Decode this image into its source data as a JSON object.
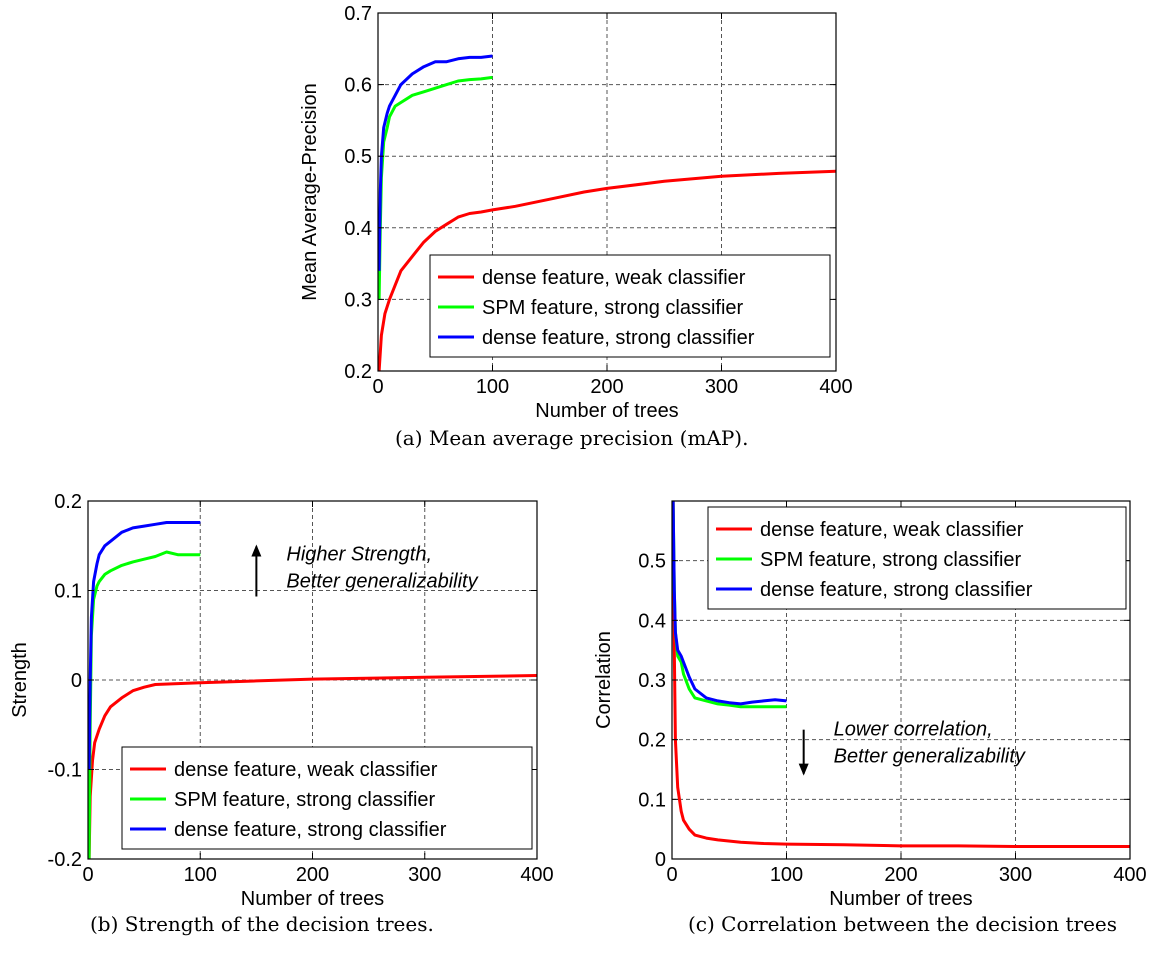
{
  "captions": {
    "a": "(a) Mean average precision (mAP).",
    "b": "(b) Strength of the decision trees.",
    "c": "(c) Correlation between the decision trees"
  },
  "colors": {
    "red": "#ff0000",
    "green": "#00ff00",
    "blue": "#0000ff",
    "grid": "#555555"
  },
  "chart_data": [
    {
      "id": "a",
      "type": "line",
      "xlabel": "Number of trees",
      "ylabel": "Mean Average-Precision",
      "xlim": [
        0,
        400
      ],
      "ylim": [
        0.2,
        0.7
      ],
      "xticks": [
        0,
        100,
        200,
        300,
        400
      ],
      "yticks": [
        0.2,
        0.3,
        0.4,
        0.5,
        0.6,
        0.7
      ],
      "ytick_labels": [
        "0.2",
        "0.3",
        "0.4",
        "0.5",
        "0.6",
        "0.7"
      ],
      "grid": true,
      "legend_position": "bottom-right",
      "series": [
        {
          "name": "dense feature, weak classifier",
          "color": "#ff0000",
          "x": [
            1,
            3,
            6,
            10,
            15,
            20,
            30,
            40,
            50,
            60,
            70,
            80,
            90,
            100,
            120,
            150,
            180,
            200,
            250,
            300,
            350,
            400
          ],
          "y": [
            0.2,
            0.25,
            0.28,
            0.3,
            0.32,
            0.34,
            0.36,
            0.38,
            0.395,
            0.405,
            0.415,
            0.42,
            0.422,
            0.425,
            0.43,
            0.44,
            0.45,
            0.455,
            0.465,
            0.472,
            0.476,
            0.479
          ]
        },
        {
          "name": "SPM feature, strong classifier",
          "color": "#00ff00",
          "x": [
            1,
            2,
            3,
            5,
            8,
            10,
            15,
            20,
            30,
            40,
            50,
            60,
            70,
            80,
            90,
            100
          ],
          "y": [
            0.3,
            0.4,
            0.47,
            0.52,
            0.54,
            0.555,
            0.57,
            0.575,
            0.585,
            0.59,
            0.595,
            0.6,
            0.605,
            0.607,
            0.608,
            0.61
          ]
        },
        {
          "name": "dense feature, strong classifier",
          "color": "#0000ff",
          "x": [
            1,
            2,
            3,
            5,
            8,
            10,
            15,
            20,
            30,
            40,
            50,
            60,
            70,
            80,
            90,
            100
          ],
          "y": [
            0.34,
            0.45,
            0.5,
            0.54,
            0.56,
            0.57,
            0.585,
            0.6,
            0.615,
            0.625,
            0.632,
            0.632,
            0.636,
            0.638,
            0.638,
            0.64
          ]
        }
      ],
      "annotations": []
    },
    {
      "id": "b",
      "type": "line",
      "xlabel": "Number of trees",
      "ylabel": "Strength",
      "xlim": [
        0,
        400
      ],
      "ylim": [
        -0.2,
        0.2
      ],
      "xticks": [
        0,
        100,
        200,
        300,
        400
      ],
      "yticks": [
        -0.2,
        -0.1,
        0,
        0.1,
        0.2
      ],
      "ytick_labels": [
        "-0.2",
        "-0.1",
        "0",
        "0.1",
        "0.2"
      ],
      "grid": true,
      "legend_position": "bottom-right",
      "series": [
        {
          "name": "dense feature, weak classifier",
          "color": "#ff0000",
          "x": [
            1,
            2,
            4,
            6,
            10,
            15,
            20,
            30,
            40,
            50,
            60,
            80,
            100,
            150,
            200,
            300,
            400
          ],
          "y": [
            -0.2,
            -0.13,
            -0.09,
            -0.07,
            -0.055,
            -0.04,
            -0.03,
            -0.02,
            -0.012,
            -0.008,
            -0.005,
            -0.004,
            -0.003,
            -0.001,
            0.001,
            0.003,
            0.005
          ]
        },
        {
          "name": "SPM feature, strong classifier",
          "color": "#00ff00",
          "x": [
            1,
            2,
            3,
            5,
            8,
            10,
            15,
            20,
            30,
            40,
            50,
            60,
            70,
            80,
            90,
            100
          ],
          "y": [
            -0.2,
            -0.05,
            0.05,
            0.09,
            0.105,
            0.11,
            0.118,
            0.122,
            0.128,
            0.132,
            0.135,
            0.138,
            0.143,
            0.14,
            0.14,
            0.14
          ]
        },
        {
          "name": "dense feature, strong classifier",
          "color": "#0000ff",
          "x": [
            1,
            2,
            3,
            5,
            8,
            10,
            15,
            20,
            30,
            40,
            50,
            60,
            70,
            80,
            90,
            100
          ],
          "y": [
            -0.1,
            0.0,
            0.07,
            0.11,
            0.13,
            0.14,
            0.15,
            0.155,
            0.165,
            0.17,
            0.172,
            0.174,
            0.176,
            0.176,
            0.176,
            0.176
          ]
        }
      ],
      "annotations": [
        {
          "lines": [
            "Higher Strength,",
            "Better generalizability"
          ],
          "arrow": "up",
          "x": 150,
          "y": 0.1
        }
      ]
    },
    {
      "id": "c",
      "type": "line",
      "xlabel": "Number of trees",
      "ylabel": "Correlation",
      "xlim": [
        0,
        400
      ],
      "ylim": [
        0,
        0.6
      ],
      "xticks": [
        0,
        100,
        200,
        300,
        400
      ],
      "yticks": [
        0,
        0.1,
        0.2,
        0.3,
        0.4,
        0.5
      ],
      "ytick_labels": [
        "0",
        "0.1",
        "0.2",
        "0.3",
        "0.4",
        "0.5"
      ],
      "grid": true,
      "legend_position": "top-right",
      "series": [
        {
          "name": "dense feature, weak classifier",
          "color": "#ff0000",
          "x": [
            1,
            2,
            3,
            5,
            8,
            10,
            15,
            20,
            30,
            40,
            60,
            80,
            100,
            150,
            200,
            250,
            300,
            350,
            400
          ],
          "y": [
            0.6,
            0.35,
            0.2,
            0.12,
            0.08,
            0.065,
            0.05,
            0.04,
            0.035,
            0.032,
            0.028,
            0.026,
            0.025,
            0.024,
            0.022,
            0.022,
            0.021,
            0.021,
            0.021
          ]
        },
        {
          "name": "SPM feature, strong classifier",
          "color": "#00ff00",
          "x": [
            1,
            2,
            3,
            5,
            8,
            10,
            15,
            20,
            30,
            40,
            50,
            60,
            70,
            80,
            90,
            100
          ],
          "y": [
            0.6,
            0.45,
            0.38,
            0.34,
            0.33,
            0.31,
            0.285,
            0.27,
            0.265,
            0.26,
            0.258,
            0.255,
            0.255,
            0.255,
            0.255,
            0.255
          ]
        },
        {
          "name": "dense feature, strong classifier",
          "color": "#0000ff",
          "x": [
            1,
            2,
            3,
            5,
            8,
            10,
            15,
            20,
            30,
            40,
            50,
            60,
            70,
            80,
            90,
            100
          ],
          "y": [
            0.6,
            0.45,
            0.38,
            0.35,
            0.34,
            0.33,
            0.305,
            0.285,
            0.27,
            0.265,
            0.262,
            0.26,
            0.263,
            0.265,
            0.267,
            0.265
          ]
        }
      ],
      "annotations": [
        {
          "lines": [
            "Lower correlation,",
            "Better generalizability"
          ],
          "arrow": "down",
          "x": 115,
          "y": 0.2
        }
      ]
    }
  ]
}
